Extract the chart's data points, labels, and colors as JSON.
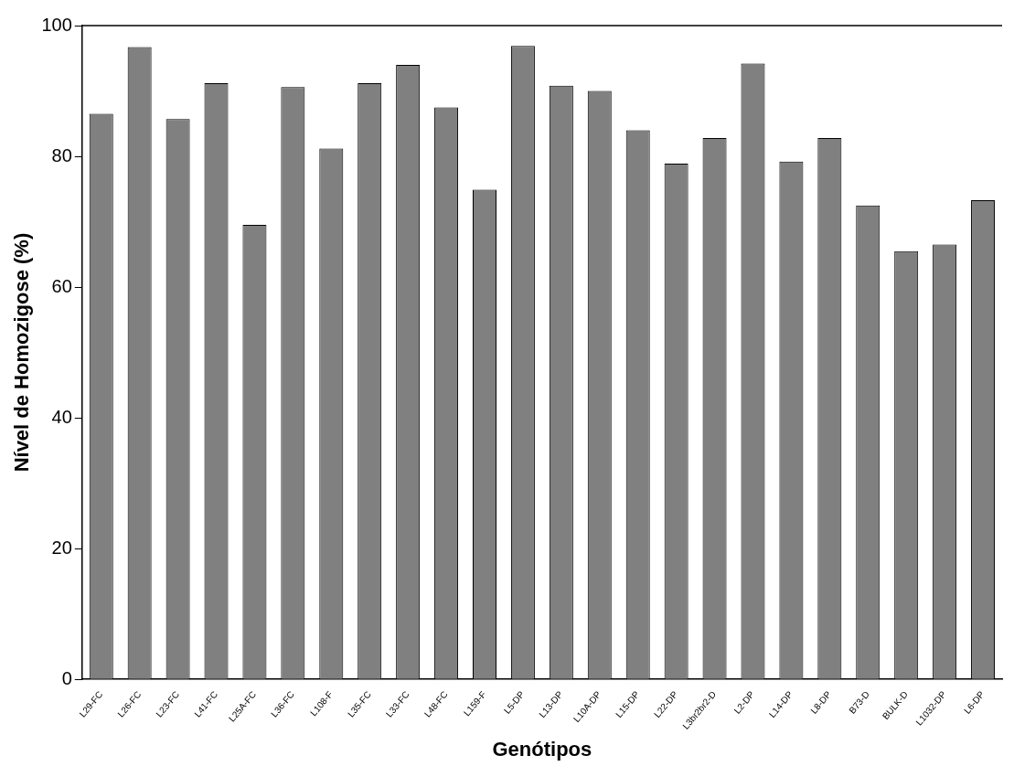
{
  "chart_data": {
    "type": "bar",
    "xlabel": "Genótipos",
    "ylabel": "Nível de Homozigose (%)",
    "categories": [
      "L29-FC",
      "L26-FC",
      "L23-FC",
      "L41-FC",
      "L25A-FC",
      "L36-FC",
      "L108-F",
      "L35-FC",
      "L33-FC",
      "L48-FC",
      "L159-F",
      "L5-DP",
      "L13-DP",
      "L10A-DP",
      "L15-DP",
      "L22-DP",
      "L3br2br2-D",
      "L2-DP",
      "L14-DP",
      "L8-DP",
      "B73-D",
      "BULK-D",
      "L1032-DP",
      "L6-DP"
    ],
    "values": [
      86.5,
      96.7,
      85.7,
      91.2,
      69.5,
      90.6,
      81.2,
      91.2,
      94.0,
      87.5,
      74.9,
      96.9,
      90.8,
      90.0,
      84.0,
      78.9,
      82.8,
      94.2,
      79.2,
      82.8,
      72.5,
      65.5,
      66.5,
      73.3
    ],
    "color": "#808080",
    "ylim": [
      0,
      100
    ],
    "yticks": [
      0,
      20,
      40,
      60,
      80,
      100
    ],
    "grid": false,
    "legend": false
  }
}
